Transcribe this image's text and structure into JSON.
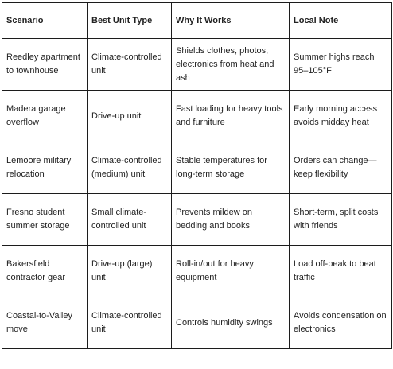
{
  "table": {
    "headers": [
      "Scenario",
      "Best Unit Type",
      "Why It Works",
      "Local Note"
    ],
    "rows": [
      [
        "Reedley apartment to townhouse",
        "Climate-controlled unit",
        "Shields clothes, photos, electronics from heat and ash",
        "Summer highs reach 95–105°F"
      ],
      [
        "Madera garage overflow",
        "Drive-up unit",
        "Fast loading for heavy tools and furniture",
        "Early morning access avoids midday heat"
      ],
      [
        "Lemoore military relocation",
        "Climate-controlled (medium) unit",
        "Stable temperatures for long-term storage",
        "Orders can change—keep flexibility"
      ],
      [
        "Fresno student summer storage",
        "Small climate-controlled unit",
        "Prevents mildew on bedding and books",
        "Short-term, split costs with friends"
      ],
      [
        "Bakersfield contractor gear",
        "Drive-up (large) unit",
        "Roll-in/out for heavy equipment",
        "Load off-peak to beat traffic"
      ],
      [
        "Coastal-to-Valley move",
        "Climate-controlled unit",
        "Controls humidity swings",
        "Avoids condensation on electronics"
      ]
    ]
  }
}
